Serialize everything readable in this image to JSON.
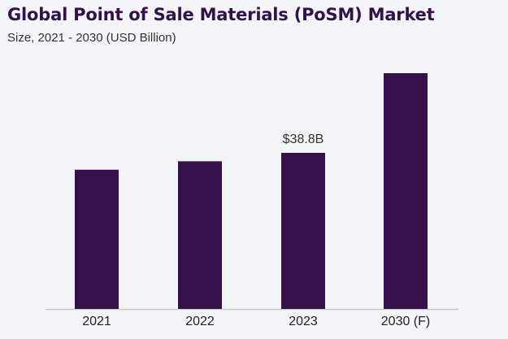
{
  "chart_data": {
    "type": "bar",
    "title": "Global Point of Sale Materials (PoSM) Market",
    "subtitle": "Size, 2021 - 2030 (USD Billion)",
    "categories": [
      "2021",
      "2022",
      "2023",
      "2030 (F)"
    ],
    "values": [
      34.6,
      36.7,
      38.8,
      58.6
    ],
    "data_labels": [
      "",
      "",
      "$38.8B",
      ""
    ],
    "xlabel": "",
    "ylabel": "",
    "ylim": [
      0,
      60
    ],
    "grid": false,
    "legend": "none",
    "colors": {
      "bar": "#35104a",
      "axis": "#c8c8c8",
      "title": "#35104a",
      "background": "#f3f5f9"
    }
  }
}
